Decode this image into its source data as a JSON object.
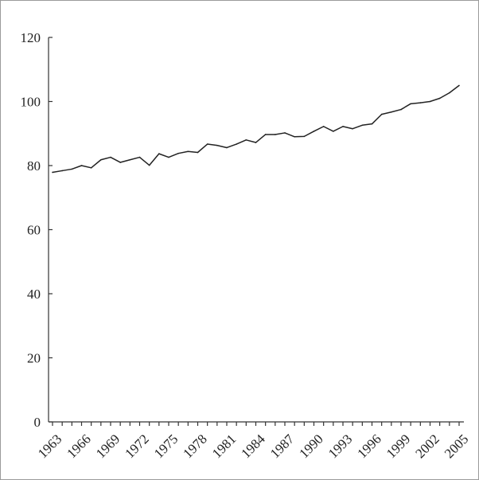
{
  "chart_data": {
    "type": "line",
    "title": "",
    "xlabel": "",
    "ylabel": "",
    "ylim": [
      0,
      120
    ],
    "xlim": [
      1963,
      2006
    ],
    "grid": false,
    "legend": "none",
    "y_ticks": [
      0,
      20,
      40,
      60,
      80,
      100,
      120
    ],
    "x_ticks": [
      1963,
      1966,
      1969,
      1972,
      1975,
      1978,
      1981,
      1984,
      1987,
      1990,
      1993,
      1996,
      1999,
      2002,
      2005
    ],
    "line_color": "#222222",
    "series": [
      {
        "x": [
          1963,
          1964,
          1965,
          1966,
          1967,
          1968,
          1969,
          1970,
          1971,
          1972,
          1973,
          1974,
          1975,
          1976,
          1977,
          1978,
          1979,
          1980,
          1981,
          1982,
          1983,
          1984,
          1985,
          1986,
          1987,
          1988,
          1989,
          1990,
          1991,
          1992,
          1993,
          1994,
          1995,
          1996,
          1997,
          1998,
          1999,
          2000,
          2001,
          2002,
          2003,
          2004,
          2005
        ],
        "values": [
          77.9,
          78.4,
          78.9,
          80.0,
          79.3,
          81.8,
          82.6,
          81.0,
          81.8,
          82.6,
          80.1,
          83.7,
          82.6,
          83.8,
          84.4,
          84.1,
          86.7,
          86.3,
          85.6,
          86.7,
          88.0,
          87.2,
          89.7,
          89.7,
          90.2,
          89.0,
          89.1,
          90.7,
          92.2,
          90.7,
          92.2,
          91.5,
          92.6,
          93.0,
          96.0,
          96.7,
          97.5,
          99.3,
          99.6,
          100.0,
          101.0,
          102.7,
          105.0
        ]
      }
    ]
  }
}
